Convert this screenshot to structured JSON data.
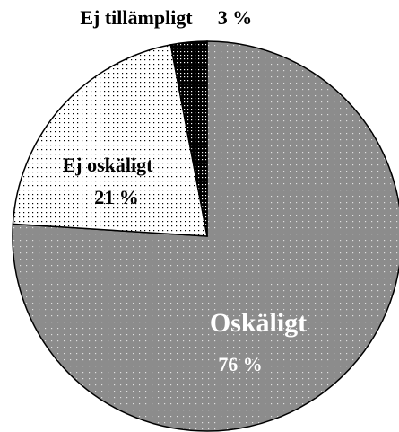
{
  "chart_data": {
    "type": "pie",
    "categories": [
      "Oskäligt",
      "Ej oskäligt",
      "Ej tillämpligt"
    ],
    "values": [
      76,
      21,
      3
    ],
    "value_labels": [
      "76 %",
      "21 %",
      "3 %"
    ],
    "colors": [
      "#8c8c8c",
      "#ffffff",
      "#000000"
    ]
  }
}
